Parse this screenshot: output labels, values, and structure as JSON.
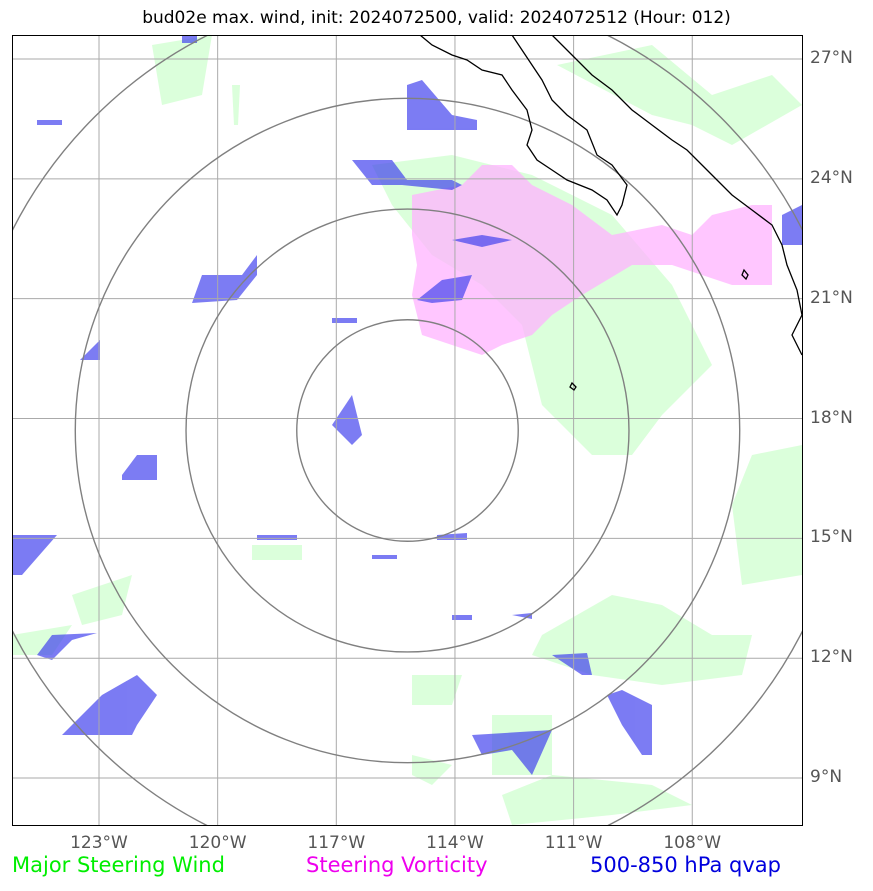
{
  "title": "bud02e max. wind, init: 2024072500, valid: 2024072512 (Hour: 012)",
  "map": {
    "lon_range": [
      -125.2,
      -105.2
    ],
    "lat_range": [
      7.8,
      27.6
    ],
    "lon_ticks": [
      {
        "value": -123,
        "label": "123°W"
      },
      {
        "value": -120,
        "label": "120°W"
      },
      {
        "value": -117,
        "label": "117°W"
      },
      {
        "value": -114,
        "label": "114°W"
      },
      {
        "value": -111,
        "label": "111°W"
      },
      {
        "value": -108,
        "label": "108°W"
      }
    ],
    "lat_ticks": [
      {
        "value": 9,
        "label": "9°N"
      },
      {
        "value": 12,
        "label": "12°N"
      },
      {
        "value": 15,
        "label": "15°N"
      },
      {
        "value": 18,
        "label": "18°N"
      },
      {
        "value": 21,
        "label": "21°N"
      },
      {
        "value": 24,
        "label": "24°N"
      },
      {
        "value": 27,
        "label": "27°N"
      }
    ],
    "gridlines": true,
    "center": {
      "lon": -115.2,
      "lat": 17.7
    },
    "range_rings_deg": [
      2.8,
      5.6,
      8.4,
      11.2
    ],
    "colors": {
      "wind": "#ccffcc",
      "vorticity": "#ffb3ff",
      "qvap": "#4444ee",
      "coast": "#000000",
      "ring": "#808080",
      "grid": "#aaaaaa"
    }
  },
  "legend": {
    "wind": {
      "label": "Major Steering Wind",
      "color": "#00ee00"
    },
    "vorticity": {
      "label": "Steering Vorticity",
      "color": "#ee00ee"
    },
    "qvap": {
      "label": "500-850 hPa qvap",
      "color": "#0000dd"
    }
  }
}
